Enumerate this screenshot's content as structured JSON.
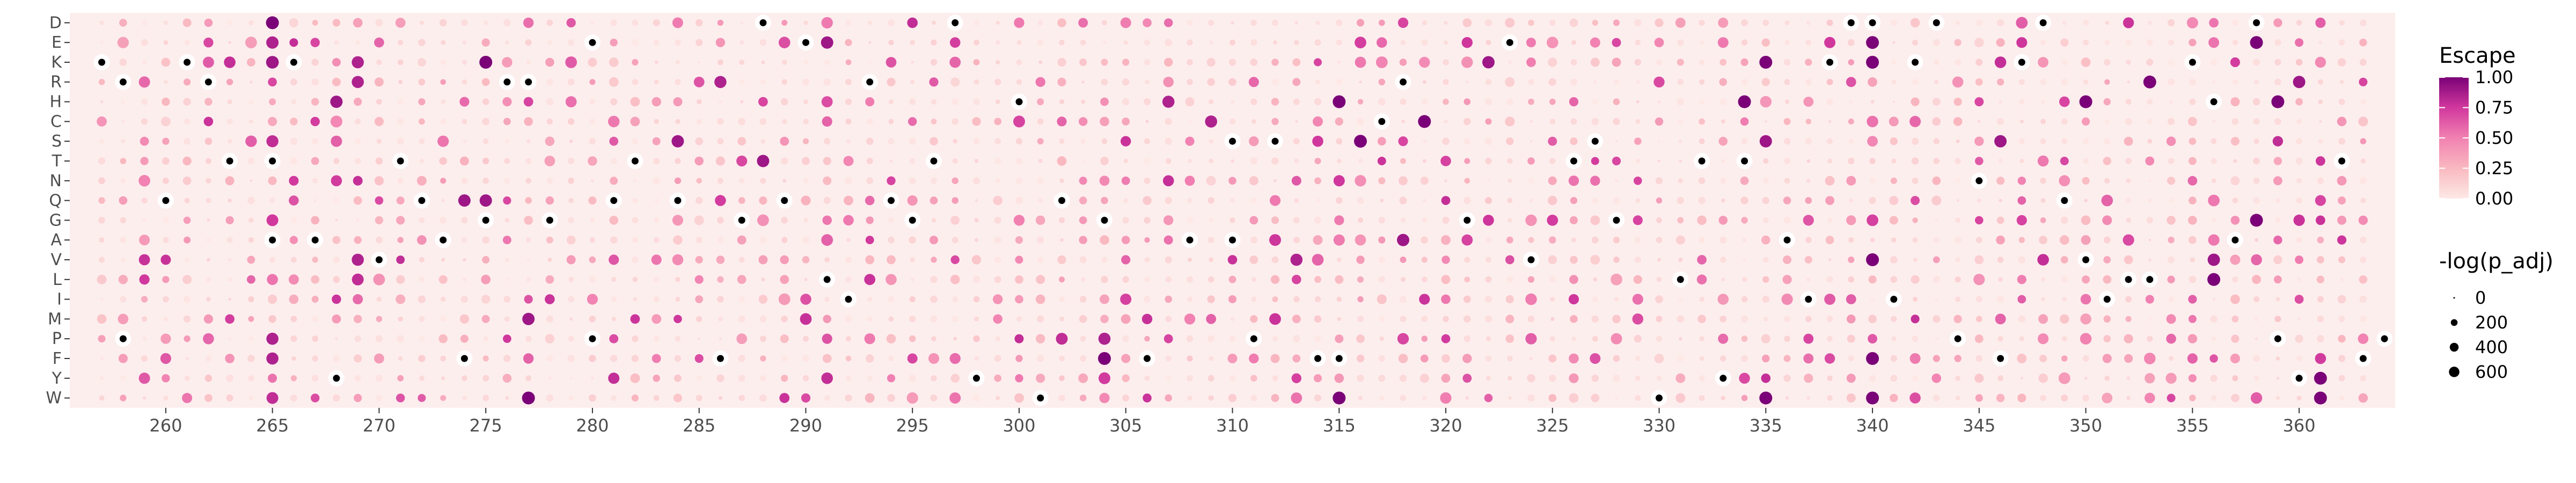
{
  "chart_data": {
    "type": "scatter",
    "title": "",
    "xlabel": "",
    "ylabel": "",
    "x_range": [
      256,
      364
    ],
    "x_ticks": [
      260,
      265,
      270,
      275,
      280,
      285,
      290,
      295,
      300,
      305,
      310,
      315,
      320,
      325,
      330,
      335,
      340,
      345,
      350,
      355,
      360
    ],
    "y_categories": [
      "D",
      "E",
      "K",
      "R",
      "H",
      "C",
      "S",
      "T",
      "N",
      "Q",
      "G",
      "A",
      "V",
      "L",
      "I",
      "M",
      "P",
      "F",
      "Y",
      "W"
    ],
    "sites": [
      257,
      258,
      259,
      260,
      261,
      262,
      263,
      264,
      265,
      266,
      267,
      268,
      269,
      270,
      271,
      272,
      273,
      274,
      275,
      276,
      277,
      278,
      279,
      280,
      281,
      282,
      283,
      284,
      285,
      286,
      287,
      288,
      289,
      290,
      291,
      292,
      293,
      294,
      295,
      296,
      297,
      298,
      299,
      300,
      301,
      302,
      303,
      304,
      305,
      306,
      307,
      308,
      309,
      310,
      311,
      312,
      313,
      314,
      315,
      316,
      317,
      318,
      319,
      320,
      321,
      322,
      323,
      324,
      325,
      326,
      327,
      328,
      329,
      330,
      331,
      332,
      333,
      334,
      335,
      336,
      337,
      338,
      339,
      340,
      341,
      342,
      343,
      344,
      345,
      346,
      347,
      348,
      349,
      350,
      351,
      352,
      353,
      354,
      355,
      356,
      357,
      358,
      359,
      360,
      361,
      362,
      363
    ],
    "highlighted_points": [
      {
        "x": 265,
        "y": "D",
        "escape": 1.0,
        "neg_log_p_adj": 500
      },
      {
        "x": 265,
        "y": "E",
        "escape": 0.85,
        "neg_log_p_adj": 450
      },
      {
        "x": 265,
        "y": "K",
        "escape": 0.9,
        "neg_log_p_adj": 480
      },
      {
        "x": 265,
        "y": "S",
        "escape": 0.8,
        "neg_log_p_adj": 420
      },
      {
        "x": 265,
        "y": "G",
        "escape": 0.75,
        "neg_log_p_adj": 400
      },
      {
        "x": 265,
        "y": "A",
        "escape": 0.9,
        "neg_log_p_adj": 450
      },
      {
        "x": 265,
        "y": "P",
        "escape": 0.85,
        "neg_log_p_adj": 430
      },
      {
        "x": 265,
        "y": "F",
        "escape": 0.85,
        "neg_log_p_adj": 430
      },
      {
        "x": 265,
        "y": "W",
        "escape": 0.8,
        "neg_log_p_adj": 400
      },
      {
        "x": 269,
        "y": "K",
        "escape": 0.85,
        "neg_log_p_adj": 430
      },
      {
        "x": 269,
        "y": "R",
        "escape": 0.85,
        "neg_log_p_adj": 430
      },
      {
        "x": 269,
        "y": "V",
        "escape": 0.85,
        "neg_log_p_adj": 430
      },
      {
        "x": 269,
        "y": "L",
        "escape": 0.8,
        "neg_log_p_adj": 400
      },
      {
        "x": 268,
        "y": "H",
        "escape": 0.9,
        "neg_log_p_adj": 450
      },
      {
        "x": 275,
        "y": "K",
        "escape": 1.0,
        "neg_log_p_adj": 500
      },
      {
        "x": 275,
        "y": "Q",
        "escape": 0.9,
        "neg_log_p_adj": 450
      },
      {
        "x": 274,
        "y": "Q",
        "escape": 0.9,
        "neg_log_p_adj": 450
      },
      {
        "x": 277,
        "y": "W",
        "escape": 1.0,
        "neg_log_p_adj": 500
      },
      {
        "x": 277,
        "y": "M",
        "escape": 0.9,
        "neg_log_p_adj": 450
      },
      {
        "x": 284,
        "y": "S",
        "escape": 0.9,
        "neg_log_p_adj": 450
      },
      {
        "x": 286,
        "y": "R",
        "escape": 0.85,
        "neg_log_p_adj": 430
      },
      {
        "x": 288,
        "y": "T",
        "escape": 0.9,
        "neg_log_p_adj": 450
      },
      {
        "x": 291,
        "y": "E",
        "escape": 0.9,
        "neg_log_p_adj": 450
      },
      {
        "x": 302,
        "y": "P",
        "escape": 0.8,
        "neg_log_p_adj": 400
      },
      {
        "x": 304,
        "y": "F",
        "escape": 1.0,
        "neg_log_p_adj": 500
      },
      {
        "x": 304,
        "y": "P",
        "escape": 0.85,
        "neg_log_p_adj": 430
      },
      {
        "x": 307,
        "y": "H",
        "escape": 0.85,
        "neg_log_p_adj": 430
      },
      {
        "x": 309,
        "y": "C",
        "escape": 0.85,
        "neg_log_p_adj": 430
      },
      {
        "x": 313,
        "y": "V",
        "escape": 0.85,
        "neg_log_p_adj": 430
      },
      {
        "x": 315,
        "y": "W",
        "escape": 1.0,
        "neg_log_p_adj": 500
      },
      {
        "x": 315,
        "y": "H",
        "escape": 1.0,
        "neg_log_p_adj": 500
      },
      {
        "x": 316,
        "y": "S",
        "escape": 1.0,
        "neg_log_p_adj": 500
      },
      {
        "x": 318,
        "y": "A",
        "escape": 0.9,
        "neg_log_p_adj": 450
      },
      {
        "x": 319,
        "y": "C",
        "escape": 1.0,
        "neg_log_p_adj": 500
      },
      {
        "x": 322,
        "y": "K",
        "escape": 0.9,
        "neg_log_p_adj": 450
      },
      {
        "x": 334,
        "y": "H",
        "escape": 1.0,
        "neg_log_p_adj": 500
      },
      {
        "x": 335,
        "y": "K",
        "escape": 1.0,
        "neg_log_p_adj": 500
      },
      {
        "x": 335,
        "y": "S",
        "escape": 0.9,
        "neg_log_p_adj": 450
      },
      {
        "x": 335,
        "y": "W",
        "escape": 1.0,
        "neg_log_p_adj": 500
      },
      {
        "x": 340,
        "y": "E",
        "escape": 1.0,
        "neg_log_p_adj": 500
      },
      {
        "x": 340,
        "y": "K",
        "escape": 1.0,
        "neg_log_p_adj": 500
      },
      {
        "x": 340,
        "y": "V",
        "escape": 1.0,
        "neg_log_p_adj": 500
      },
      {
        "x": 340,
        "y": "W",
        "escape": 1.0,
        "neg_log_p_adj": 500
      },
      {
        "x": 340,
        "y": "F",
        "escape": 1.0,
        "neg_log_p_adj": 500
      },
      {
        "x": 346,
        "y": "S",
        "escape": 0.9,
        "neg_log_p_adj": 450
      },
      {
        "x": 350,
        "y": "H",
        "escape": 1.0,
        "neg_log_p_adj": 500
      },
      {
        "x": 353,
        "y": "R",
        "escape": 1.0,
        "neg_log_p_adj": 500
      },
      {
        "x": 356,
        "y": "L",
        "escape": 1.0,
        "neg_log_p_adj": 500
      },
      {
        "x": 356,
        "y": "V",
        "escape": 0.9,
        "neg_log_p_adj": 450
      },
      {
        "x": 358,
        "y": "E",
        "escape": 1.0,
        "neg_log_p_adj": 500
      },
      {
        "x": 358,
        "y": "G",
        "escape": 1.0,
        "neg_log_p_adj": 500
      },
      {
        "x": 359,
        "y": "H",
        "escape": 1.0,
        "neg_log_p_adj": 500
      },
      {
        "x": 360,
        "y": "R",
        "escape": 0.9,
        "neg_log_p_adj": 450
      },
      {
        "x": 361,
        "y": "W",
        "escape": 1.0,
        "neg_log_p_adj": 500
      },
      {
        "x": 361,
        "y": "Y",
        "escape": 1.0,
        "neg_log_p_adj": 500
      }
    ],
    "black_points": [
      {
        "x": 257,
        "y": "K"
      },
      {
        "x": 258,
        "y": "R"
      },
      {
        "x": 258,
        "y": "P"
      },
      {
        "x": 260,
        "y": "Q"
      },
      {
        "x": 261,
        "y": "K"
      },
      {
        "x": 262,
        "y": "R"
      },
      {
        "x": 263,
        "y": "T"
      },
      {
        "x": 265,
        "y": "T"
      },
      {
        "x": 265,
        "y": "A"
      },
      {
        "x": 266,
        "y": "K"
      },
      {
        "x": 267,
        "y": "A"
      },
      {
        "x": 268,
        "y": "Y"
      },
      {
        "x": 270,
        "y": "V"
      },
      {
        "x": 271,
        "y": "T"
      },
      {
        "x": 272,
        "y": "Q"
      },
      {
        "x": 273,
        "y": "A"
      },
      {
        "x": 274,
        "y": "F"
      },
      {
        "x": 275,
        "y": "G"
      },
      {
        "x": 276,
        "y": "R"
      },
      {
        "x": 277,
        "y": "R"
      },
      {
        "x": 278,
        "y": "G"
      },
      {
        "x": 280,
        "y": "E"
      },
      {
        "x": 280,
        "y": "P"
      },
      {
        "x": 281,
        "y": "Q"
      },
      {
        "x": 282,
        "y": "T"
      },
      {
        "x": 284,
        "y": "Q"
      },
      {
        "x": 286,
        "y": "F"
      },
      {
        "x": 287,
        "y": "G"
      },
      {
        "x": 288,
        "y": "D"
      },
      {
        "x": 289,
        "y": "Q"
      },
      {
        "x": 290,
        "y": "E"
      },
      {
        "x": 291,
        "y": "L"
      },
      {
        "x": 292,
        "y": "I"
      },
      {
        "x": 293,
        "y": "R"
      },
      {
        "x": 294,
        "y": "Q"
      },
      {
        "x": 295,
        "y": "G"
      },
      {
        "x": 296,
        "y": "T"
      },
      {
        "x": 297,
        "y": "D"
      },
      {
        "x": 298,
        "y": "Y"
      },
      {
        "x": 300,
        "y": "H"
      },
      {
        "x": 301,
        "y": "W"
      },
      {
        "x": 302,
        "y": "Q"
      },
      {
        "x": 304,
        "y": "G"
      },
      {
        "x": 306,
        "y": "F"
      },
      {
        "x": 308,
        "y": "A"
      },
      {
        "x": 310,
        "y": "S"
      },
      {
        "x": 310,
        "y": "A"
      },
      {
        "x": 311,
        "y": "P"
      },
      {
        "x": 312,
        "y": "S"
      },
      {
        "x": 314,
        "y": "F"
      },
      {
        "x": 315,
        "y": "F"
      },
      {
        "x": 317,
        "y": "C"
      },
      {
        "x": 318,
        "y": "R"
      },
      {
        "x": 321,
        "y": "G"
      },
      {
        "x": 323,
        "y": "E"
      },
      {
        "x": 324,
        "y": "V"
      },
      {
        "x": 326,
        "y": "T"
      },
      {
        "x": 327,
        "y": "S"
      },
      {
        "x": 328,
        "y": "G"
      },
      {
        "x": 330,
        "y": "W"
      },
      {
        "x": 331,
        "y": "L"
      },
      {
        "x": 332,
        "y": "T"
      },
      {
        "x": 333,
        "y": "Y"
      },
      {
        "x": 334,
        "y": "T"
      },
      {
        "x": 336,
        "y": "A"
      },
      {
        "x": 337,
        "y": "I"
      },
      {
        "x": 338,
        "y": "K"
      },
      {
        "x": 339,
        "y": "D"
      },
      {
        "x": 340,
        "y": "D"
      },
      {
        "x": 341,
        "y": "I"
      },
      {
        "x": 342,
        "y": "K"
      },
      {
        "x": 343,
        "y": "D"
      },
      {
        "x": 344,
        "y": "P"
      },
      {
        "x": 345,
        "y": "N"
      },
      {
        "x": 346,
        "y": "F"
      },
      {
        "x": 347,
        "y": "K"
      },
      {
        "x": 348,
        "y": "D"
      },
      {
        "x": 349,
        "y": "Q"
      },
      {
        "x": 350,
        "y": "V"
      },
      {
        "x": 351,
        "y": "I"
      },
      {
        "x": 352,
        "y": "L"
      },
      {
        "x": 353,
        "y": "L"
      },
      {
        "x": 355,
        "y": "K"
      },
      {
        "x": 356,
        "y": "H"
      },
      {
        "x": 357,
        "y": "A"
      },
      {
        "x": 358,
        "y": "D"
      },
      {
        "x": 359,
        "y": "P"
      },
      {
        "x": 360,
        "y": "Y"
      },
      {
        "x": 362,
        "y": "T"
      },
      {
        "x": 363,
        "y": "F"
      },
      {
        "x": 364,
        "y": "P"
      }
    ],
    "legend": {
      "color_title": "Escape",
      "color_ticks": [
        "1.00",
        "0.75",
        "0.50",
        "0.25",
        "0.00"
      ],
      "size_title": "-log(p_adj)",
      "size_ticks": [
        "0",
        "200",
        "400",
        "600"
      ],
      "placement": "right"
    }
  },
  "colors": {
    "panel_background": "#fdeeee",
    "escape_low": "#fde5e3",
    "escape_high": "#7a0177",
    "significant": "#000000"
  }
}
